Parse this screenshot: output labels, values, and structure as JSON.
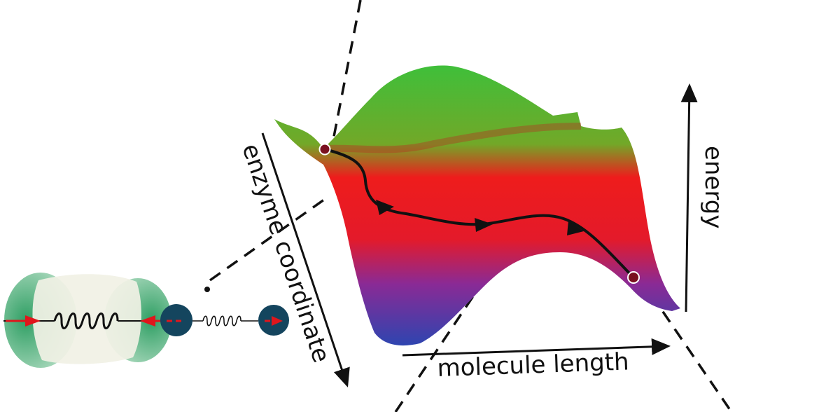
{
  "axes": {
    "x_label": "molecule length",
    "y_label": "energy",
    "z_label": "enzyme coordinate"
  },
  "colors": {
    "surface_high": "#3fbf3a",
    "surface_mid": "#ee1c1c",
    "surface_low": "#2e45b0",
    "path": "#111111",
    "endpoint_fill": "#7a1020",
    "enzyme_body": "#f1f1e5",
    "enzyme_lobes": "#3daa6a",
    "molecule_beads": "#14455e",
    "force_arrows": "#e0161c"
  },
  "icons": {
    "path_arrowhead": "triangle-arrowhead",
    "endpoint": "circle-marker",
    "spring": "coil-spring"
  }
}
